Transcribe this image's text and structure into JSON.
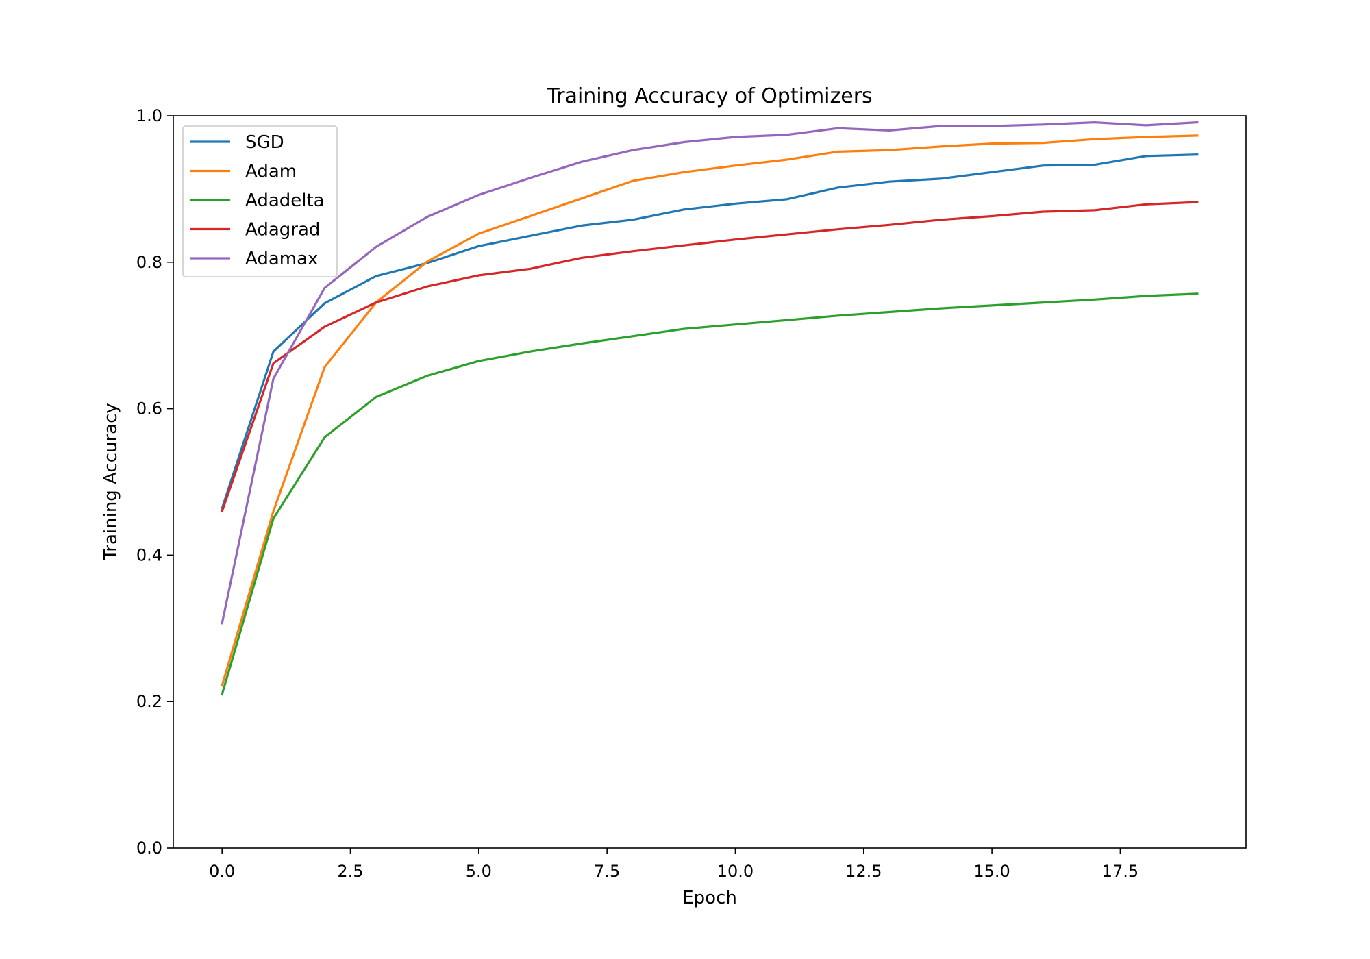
{
  "chart_data": {
    "type": "line",
    "title": "Training Accuracy of Optimizers",
    "xlabel": "Epoch",
    "ylabel": "Training Accuracy",
    "xlim": [
      -0.95,
      19.95
    ],
    "ylim": [
      0.0,
      1.0
    ],
    "xticks": [
      0,
      2.5,
      5,
      7.5,
      10,
      12.5,
      15,
      17.5
    ],
    "xtick_labels": [
      "0.0",
      "2.5",
      "5.0",
      "7.5",
      "10.0",
      "12.5",
      "15.0",
      "17.5"
    ],
    "yticks": [
      0,
      0.2,
      0.4,
      0.6,
      0.8,
      1.0
    ],
    "ytick_labels": [
      "0.0",
      "0.2",
      "0.4",
      "0.6",
      "0.8",
      "1.0"
    ],
    "grid": false,
    "legend_position": "upper left",
    "x": [
      0,
      1,
      2,
      3,
      4,
      5,
      6,
      7,
      8,
      9,
      10,
      11,
      12,
      13,
      14,
      15,
      16,
      17,
      18,
      19
    ],
    "series": [
      {
        "name": "SGD",
        "color": "#1f77b4",
        "values": [
          0.464,
          0.678,
          0.744,
          0.781,
          0.799,
          0.822,
          0.836,
          0.85,
          0.858,
          0.872,
          0.88,
          0.886,
          0.902,
          0.91,
          0.914,
          0.923,
          0.932,
          0.933,
          0.945,
          0.947
        ]
      },
      {
        "name": "Adam",
        "color": "#ff7f0e",
        "values": [
          0.222,
          0.46,
          0.657,
          0.745,
          0.801,
          0.839,
          0.863,
          0.887,
          0.911,
          0.923,
          0.932,
          0.94,
          0.951,
          0.953,
          0.958,
          0.962,
          0.963,
          0.968,
          0.971,
          0.973
        ]
      },
      {
        "name": "Adadelta",
        "color": "#2ca02c",
        "values": [
          0.21,
          0.45,
          0.561,
          0.616,
          0.645,
          0.665,
          0.678,
          0.689,
          0.699,
          0.709,
          0.715,
          0.721,
          0.727,
          0.732,
          0.737,
          0.741,
          0.745,
          0.749,
          0.754,
          0.757
        ]
      },
      {
        "name": "Adagrad",
        "color": "#d62728",
        "values": [
          0.46,
          0.662,
          0.712,
          0.745,
          0.767,
          0.782,
          0.791,
          0.806,
          0.815,
          0.823,
          0.831,
          0.838,
          0.845,
          0.851,
          0.858,
          0.863,
          0.869,
          0.871,
          0.879,
          0.882
        ]
      },
      {
        "name": "Adamax",
        "color": "#9467bd",
        "values": [
          0.307,
          0.641,
          0.765,
          0.821,
          0.862,
          0.892,
          0.915,
          0.937,
          0.953,
          0.964,
          0.971,
          0.974,
          0.983,
          0.98,
          0.986,
          0.986,
          0.988,
          0.991,
          0.987,
          0.991
        ]
      }
    ]
  }
}
